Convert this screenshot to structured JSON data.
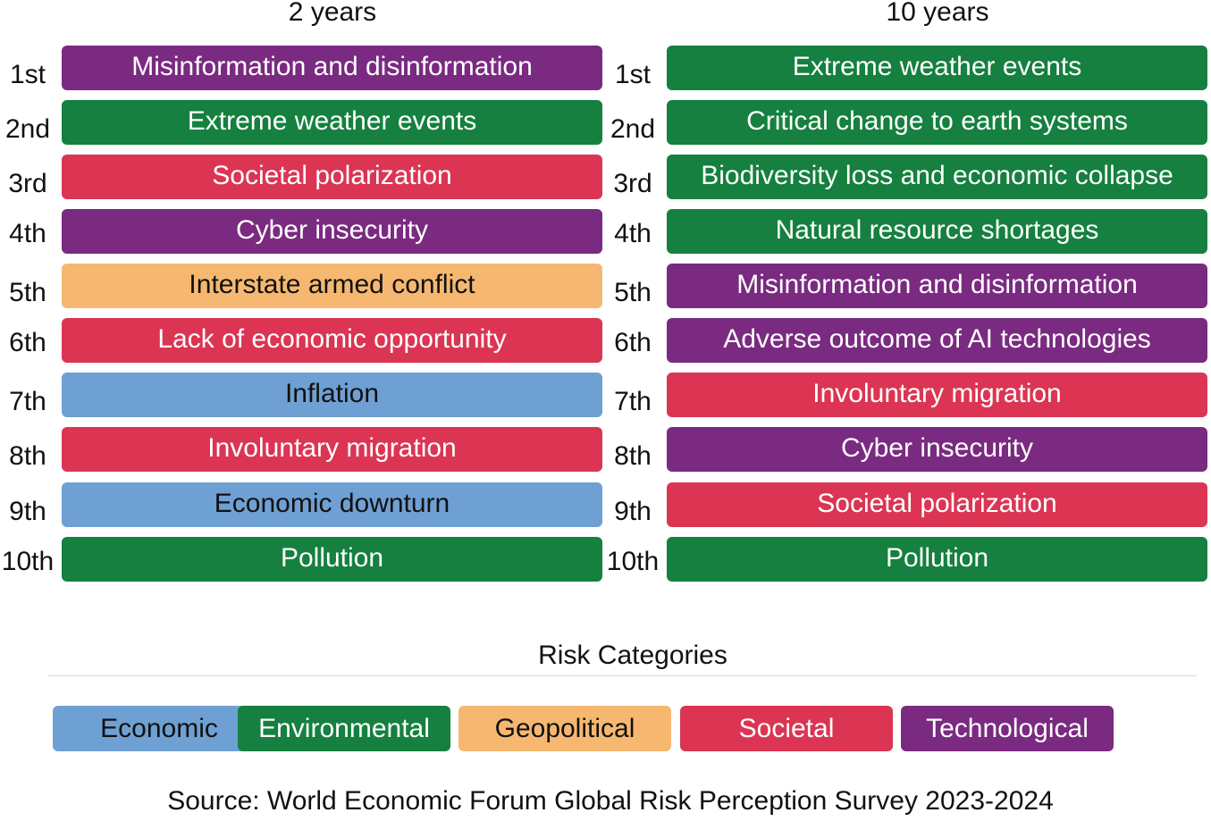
{
  "chart_data": {
    "type": "table",
    "title": "",
    "columns": [
      {
        "title": "2 years",
        "ranks": [
          "1st",
          "2nd",
          "3rd",
          "4th",
          "5th",
          "6th",
          "7th",
          "8th",
          "9th",
          "10th"
        ],
        "risks": [
          {
            "label": "Misinformation and disinformation",
            "category": "Technological"
          },
          {
            "label": "Extreme weather events",
            "category": "Environmental"
          },
          {
            "label": "Societal polarization",
            "category": "Societal"
          },
          {
            "label": "Cyber insecurity",
            "category": "Technological"
          },
          {
            "label": "Interstate armed conflict",
            "category": "Geopolitical"
          },
          {
            "label": "Lack of economic opportunity",
            "category": "Societal"
          },
          {
            "label": "Inflation",
            "category": "Economic"
          },
          {
            "label": "Involuntary migration",
            "category": "Societal"
          },
          {
            "label": "Economic downturn",
            "category": "Economic"
          },
          {
            "label": "Pollution",
            "category": "Environmental"
          }
        ]
      },
      {
        "title": "10 years",
        "ranks": [
          "1st",
          "2nd",
          "3rd",
          "4th",
          "5th",
          "6th",
          "7th",
          "8th",
          "9th",
          "10th"
        ],
        "risks": [
          {
            "label": "Extreme weather events",
            "category": "Environmental"
          },
          {
            "label": "Critical change to earth systems",
            "category": "Environmental"
          },
          {
            "label": "Biodiversity loss and economic collapse",
            "category": "Environmental"
          },
          {
            "label": "Natural resource shortages",
            "category": "Environmental"
          },
          {
            "label": "Misinformation and disinformation",
            "category": "Technological"
          },
          {
            "label": "Adverse outcome of AI technologies",
            "category": "Technological"
          },
          {
            "label": "Involuntary migration",
            "category": "Societal"
          },
          {
            "label": "Cyber insecurity",
            "category": "Technological"
          },
          {
            "label": "Societal polarization",
            "category": "Societal"
          },
          {
            "label": "Pollution",
            "category": "Environmental"
          }
        ]
      }
    ],
    "legend": {
      "title": "Risk Categories",
      "items": [
        {
          "label": "Economic",
          "color": "#6fa0d3",
          "text_color": "#111111"
        },
        {
          "label": "Environmental",
          "color": "#15803f",
          "text_color": "#ffffff"
        },
        {
          "label": "Geopolitical",
          "color": "#f6b870",
          "text_color": "#111111"
        },
        {
          "label": "Societal",
          "color": "#db3553",
          "text_color": "#ffffff"
        },
        {
          "label": "Technological",
          "color": "#7a2a80",
          "text_color": "#ffffff"
        }
      ]
    },
    "source": "Source: World Economic Forum Global Risk Perception Survey 2023-2024"
  }
}
